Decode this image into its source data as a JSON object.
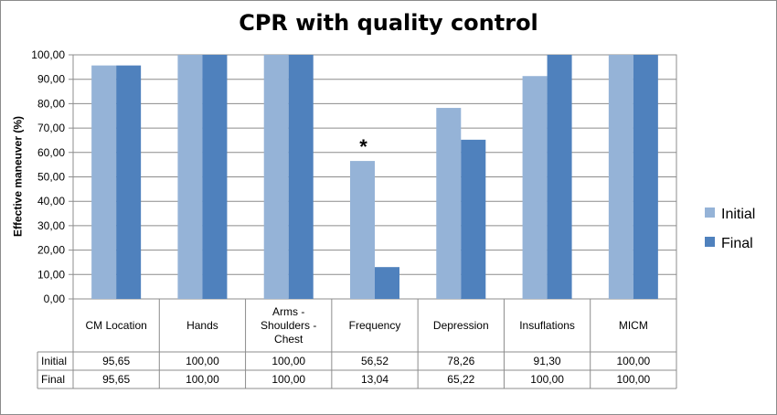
{
  "chart_data": {
    "type": "bar",
    "title": "CPR with quality control",
    "ylabel": "Effective maneuver (%)",
    "xlabel": "",
    "ylim": [
      0,
      100
    ],
    "y_ticks": [
      "0,00",
      "10,00",
      "20,00",
      "30,00",
      "40,00",
      "50,00",
      "60,00",
      "70,00",
      "80,00",
      "90,00",
      "100,00"
    ],
    "grid": "horizontal",
    "legend_position": "right",
    "categories": [
      "CM Location",
      "Hands",
      "Arms - Shoulders - Chest",
      "Frequency",
      "Depression",
      "Insuflations",
      "MICM"
    ],
    "category_lines": [
      [
        "CM Location"
      ],
      [
        "Hands"
      ],
      [
        "Arms -",
        "Shoulders -",
        "Chest"
      ],
      [
        "Frequency"
      ],
      [
        "Depression"
      ],
      [
        "Insuflations"
      ],
      [
        "MICM"
      ]
    ],
    "series": [
      {
        "name": "Initial",
        "color": "#95b3d7",
        "values": [
          95.65,
          100.0,
          100.0,
          56.52,
          78.26,
          91.3,
          100.0
        ],
        "labels": [
          "95,65",
          "100,00",
          "100,00",
          "56,52",
          "78,26",
          "91,30",
          "100,00"
        ]
      },
      {
        "name": "Final",
        "color": "#4f81bd",
        "values": [
          95.65,
          100.0,
          100.0,
          13.04,
          65.22,
          100.0,
          100.0
        ],
        "labels": [
          "95,65",
          "100,00",
          "100,00",
          "13,04",
          "65,22",
          "100,00",
          "100,00"
        ]
      }
    ],
    "annotations": [
      {
        "text": "*",
        "category": "Frequency"
      }
    ]
  }
}
